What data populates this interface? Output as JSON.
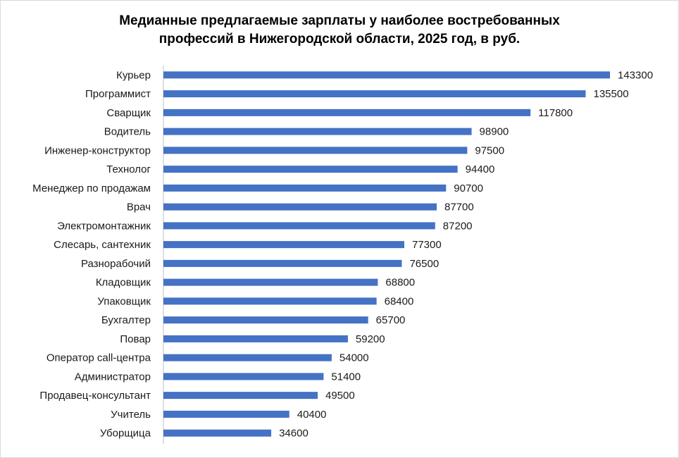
{
  "colors": {
    "bar": "#4472c4",
    "axis": "#bfbfbf",
    "text": "#1a1a1a"
  },
  "chart_data": {
    "type": "bar",
    "orientation": "horizontal",
    "title_lines": [
      "Медианные предлагаемые зарплаты у наиболее востребованных",
      "профессий в Нижегородской области, 2025 год, в руб."
    ],
    "categories": [
      "Курьер",
      "Программист",
      "Сварщик",
      "Водитель",
      "Инженер-конструктор",
      "Технолог",
      "Менеджер по продажам",
      "Врач",
      "Электромонтажник",
      "Слесарь, сантехник",
      "Разнорабочий",
      "Кладовщик",
      "Упаковщик",
      "Бухгалтер",
      "Повар",
      "Оператор call-центра",
      "Администратор",
      "Продавец-консультант",
      "Учитель",
      "Уборщица"
    ],
    "values": [
      143300,
      135500,
      117800,
      98900,
      97500,
      94400,
      90700,
      87700,
      87200,
      77300,
      76500,
      68800,
      68400,
      65700,
      59200,
      54000,
      51400,
      49500,
      40400,
      34600
    ],
    "xlim": [
      0,
      150000
    ],
    "data_labels": true,
    "xlabel": "",
    "ylabel": "",
    "grid": false,
    "legend": "none"
  }
}
